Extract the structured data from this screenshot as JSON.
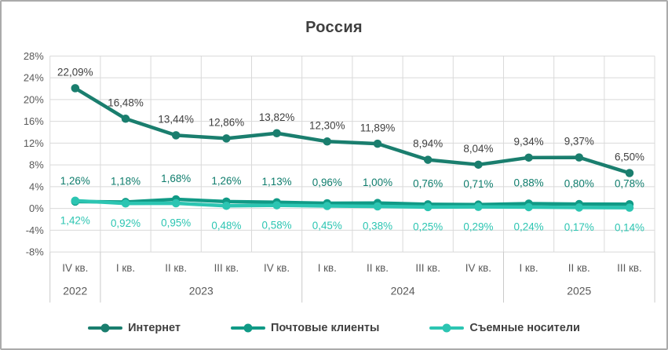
{
  "window": {
    "border_color": "#ABABAB",
    "background": "#FFFFFF"
  },
  "chart_data": {
    "type": "line",
    "title": "Россия",
    "title_color": "#3F3F3F",
    "grid": true,
    "grid_color": "#D9D9D9",
    "legend_position": "bottom",
    "categories": [
      "IV кв.",
      "I кв.",
      "II кв.",
      "III кв.",
      "IV кв.",
      "I кв.",
      "II кв.",
      "III кв.",
      "IV кв.",
      "I кв.",
      "II кв.",
      "III кв."
    ],
    "year_groups": [
      {
        "label": "2022",
        "count": 1
      },
      {
        "label": "2023",
        "count": 4
      },
      {
        "label": "2024",
        "count": 4
      },
      {
        "label": "2025",
        "count": 3
      }
    ],
    "y_axis": {
      "min": -8,
      "max": 28,
      "step": 4,
      "tick_labels": [
        "28%",
        "24%",
        "20%",
        "16%",
        "12%",
        "8%",
        "4%",
        "0%",
        "-4%",
        "-8%"
      ],
      "label_color": "#595959"
    },
    "series": [
      {
        "name": "Интернет",
        "slug": "internet",
        "color": "#1A7E6E",
        "label_color": "#404040",
        "label_side": "above",
        "values": [
          22.09,
          16.48,
          13.44,
          12.86,
          13.82,
          12.3,
          11.89,
          8.94,
          8.04,
          9.34,
          9.37,
          6.5
        ],
        "labels": [
          "22,09%",
          "16,48%",
          "13,44%",
          "12,86%",
          "13,82%",
          "12,30%",
          "11,89%",
          "8,94%",
          "8,04%",
          "9,34%",
          "9,37%",
          "6,50%"
        ]
      },
      {
        "name": "Почтовые клиенты",
        "slug": "mail-clients",
        "color": "#109A86",
        "label_color": "#0E7C6C",
        "label_side": "above",
        "values": [
          1.26,
          1.18,
          1.68,
          1.26,
          1.13,
          0.96,
          1.0,
          0.76,
          0.71,
          0.88,
          0.8,
          0.78
        ],
        "labels": [
          "1,26%",
          "1,18%",
          "1,68%",
          "1,26%",
          "1,13%",
          "0,96%",
          "1,00%",
          "0,76%",
          "0,71%",
          "0,88%",
          "0,80%",
          "0,78%"
        ]
      },
      {
        "name": "Съемные носители",
        "slug": "removable-media",
        "color": "#2CC5B2",
        "label_color": "#2CC5B2",
        "label_side": "below",
        "values": [
          1.42,
          0.92,
          0.95,
          0.48,
          0.58,
          0.45,
          0.38,
          0.25,
          0.29,
          0.24,
          0.17,
          0.14
        ],
        "labels": [
          "1,42%",
          "0,92%",
          "0,95%",
          "0,48%",
          "0,58%",
          "0,45%",
          "0,38%",
          "0,25%",
          "0,29%",
          "0,24%",
          "0,17%",
          "0,14%"
        ]
      }
    ]
  }
}
